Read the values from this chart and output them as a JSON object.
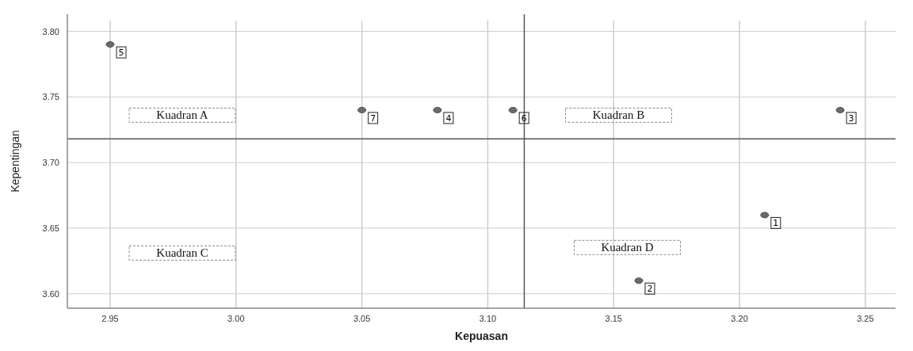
{
  "chart_data": {
    "type": "scatter",
    "xlabel": "Kepuasan",
    "ylabel": "Kepentingan",
    "x": [
      3.21,
      3.16,
      3.24,
      3.08,
      2.95,
      3.11,
      3.05
    ],
    "series": [
      {
        "color": "#6b6b6b",
        "values": [
          3.66,
          3.61,
          3.74,
          3.74,
          3.79,
          3.74,
          3.74
        ]
      }
    ],
    "value_labels": [
      "1",
      "2",
      "3",
      "4",
      "5",
      "6",
      "7"
    ],
    "xlim": [
      2.933,
      3.262
    ],
    "xticks": [
      2.95,
      {
        "value": 3.0,
        "label": "3.00"
      },
      3.05,
      {
        "value": 3.1,
        "label": "3.10"
      },
      3.15,
      {
        "value": 3.2,
        "label": "3.20"
      },
      3.25
    ],
    "ylim": [
      3.589,
      3.813
    ],
    "yticks": [
      {
        "value": 3.6,
        "label": "3.60"
      },
      3.65,
      {
        "value": 3.7,
        "label": "3.70"
      },
      3.75,
      {
        "value": 3.8,
        "label": "3.80"
      }
    ],
    "ref_lines": [
      {
        "axis": "x",
        "value": 3.1145,
        "color": "#555555"
      },
      {
        "axis": "y",
        "value": 3.718,
        "color": "#555555"
      }
    ],
    "annotations": [
      "Kuadran A",
      "Kuadran B",
      "Kuadran C",
      "Kuadran D"
    ],
    "grid": true,
    "marker": "circle"
  }
}
